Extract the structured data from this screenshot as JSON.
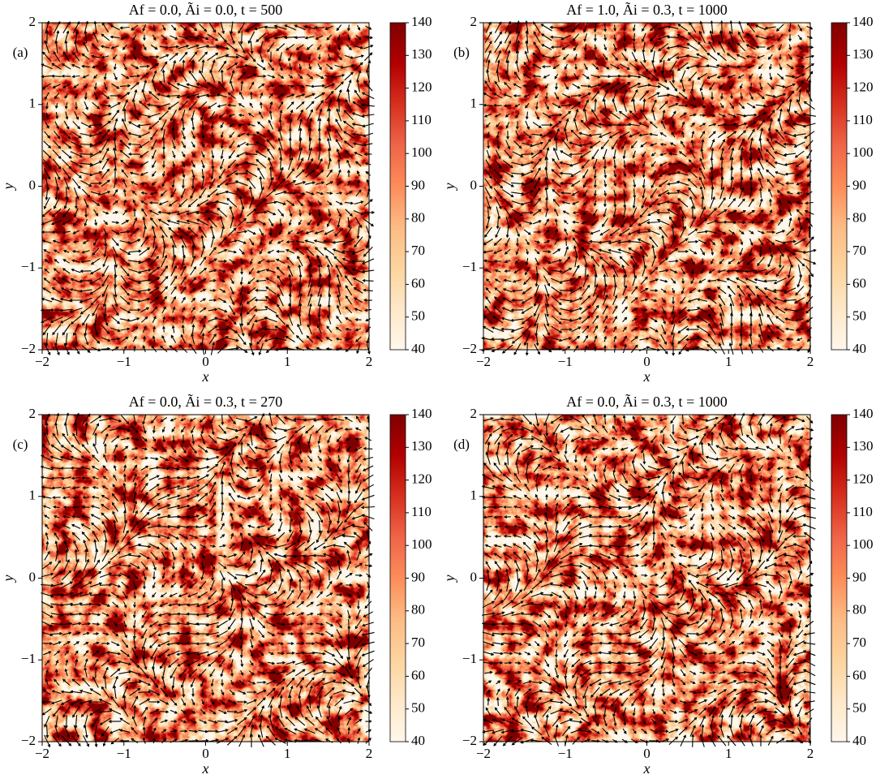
{
  "chart_data": [
    {
      "type": "heatmap",
      "title": "Af = 0.0,  Ãi = 0.0,  t = 500",
      "panel_label": "(a)",
      "xlabel": "x",
      "ylabel": "y",
      "xlim": [
        -2,
        2
      ],
      "ylim": [
        -2,
        2
      ],
      "xticks": [
        {
          "value": -2,
          "label": "−2"
        },
        {
          "value": -1,
          "label": "−1"
        },
        0,
        1,
        2
      ],
      "yticks": [
        {
          "value": -2,
          "label": "−2"
        },
        {
          "value": -1,
          "label": "−1"
        },
        0,
        1,
        2
      ],
      "clim": [
        40,
        140
      ],
      "cticks": [
        40,
        50,
        60,
        70,
        80,
        90,
        100,
        110,
        120,
        130,
        140
      ],
      "colormap": [
        "#fff7ec",
        "#fee8c8",
        "#fdd49e",
        "#fdbb84",
        "#fc8d59",
        "#ef6548",
        "#d7301f",
        "#b30000",
        "#7f0000"
      ]
    },
    {
      "type": "heatmap",
      "title": "Af = 1.0,  Ãi = 0.3,  t = 1000",
      "panel_label": "(b)",
      "xlabel": "x",
      "ylabel": "y",
      "xlim": [
        -2,
        2
      ],
      "ylim": [
        -2,
        2
      ],
      "xticks": [
        {
          "value": -2,
          "label": "−2"
        },
        {
          "value": -1,
          "label": "−1"
        },
        0,
        1,
        2
      ],
      "yticks": [
        {
          "value": -2,
          "label": "−2"
        },
        {
          "value": -1,
          "label": "−1"
        },
        0,
        1,
        2
      ],
      "clim": [
        40,
        140
      ],
      "cticks": [
        40,
        50,
        60,
        70,
        80,
        90,
        100,
        110,
        120,
        130,
        140
      ],
      "colormap": [
        "#fff7ec",
        "#fee8c8",
        "#fdd49e",
        "#fdbb84",
        "#fc8d59",
        "#ef6548",
        "#d7301f",
        "#b30000",
        "#7f0000"
      ]
    },
    {
      "type": "heatmap",
      "title": "Af = 0.0,  Ãi = 0.3,  t = 270",
      "panel_label": "(c)",
      "xlabel": "x",
      "ylabel": "y",
      "xlim": [
        -2,
        2
      ],
      "ylim": [
        -2,
        2
      ],
      "xticks": [
        {
          "value": -2,
          "label": "−2"
        },
        {
          "value": -1,
          "label": "−1"
        },
        0,
        1,
        2
      ],
      "yticks": [
        {
          "value": -2,
          "label": "−2"
        },
        {
          "value": -1,
          "label": "−1"
        },
        0,
        1,
        2
      ],
      "clim": [
        40,
        140
      ],
      "cticks": [
        40,
        50,
        60,
        70,
        80,
        90,
        100,
        110,
        120,
        130,
        140
      ],
      "colormap": [
        "#fff7ec",
        "#fee8c8",
        "#fdd49e",
        "#fdbb84",
        "#fc8d59",
        "#ef6548",
        "#d7301f",
        "#b30000",
        "#7f0000"
      ]
    },
    {
      "type": "heatmap",
      "title": "Af = 0.0,  Ãi = 0.3,  t = 1000",
      "panel_label": "(d)",
      "xlabel": "x",
      "ylabel": "y",
      "xlim": [
        -2,
        2
      ],
      "ylim": [
        -2,
        2
      ],
      "xticks": [
        {
          "value": -2,
          "label": "−2"
        },
        {
          "value": -1,
          "label": "−1"
        },
        0,
        1,
        2
      ],
      "yticks": [
        {
          "value": -2,
          "label": "−2"
        },
        {
          "value": -1,
          "label": "−1"
        },
        0,
        1,
        2
      ],
      "clim": [
        40,
        140
      ],
      "cticks": [
        40,
        50,
        60,
        70,
        80,
        90,
        100,
        110,
        120,
        130,
        140
      ],
      "colormap": [
        "#fff7ec",
        "#fee8c8",
        "#fdd49e",
        "#fdbb84",
        "#fc8d59",
        "#ef6548",
        "#d7301f",
        "#b30000",
        "#7f0000"
      ]
    }
  ]
}
